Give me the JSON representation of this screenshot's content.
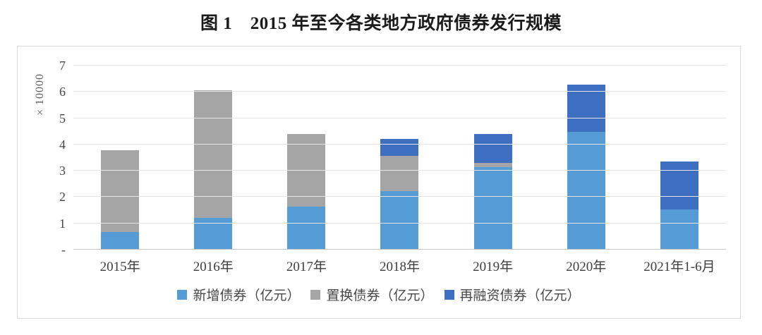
{
  "figure": {
    "title": "图 1　2015 年至今各类地方政府债券发行规模"
  },
  "chart_data": {
    "type": "bar",
    "stacked": true,
    "title": "图 1　2015 年至今各类地方政府债券发行规模",
    "categories": [
      "2015年",
      "2016年",
      "2017年",
      "2018年",
      "2019年",
      "2020年",
      "2021年1-6月"
    ],
    "series": [
      {
        "key": "new-bonds",
        "name": "新增债券（亿元）",
        "color": "#559BD5",
        "values": [
          6500,
          11700,
          16000,
          22000,
          31000,
          44500,
          15000
        ]
      },
      {
        "key": "replacement-bonds",
        "name": "置换债券（亿元）",
        "color": "#A5A5A5",
        "values": [
          31000,
          48700,
          27600,
          13300,
          1800,
          0,
          0
        ]
      },
      {
        "key": "refinancing-bonds",
        "name": "再融资债券（亿元）",
        "color": "#3E6FC0",
        "values": [
          0,
          0,
          0,
          6500,
          11000,
          18000,
          18200
        ]
      }
    ],
    "totals": [
      37500,
      60400,
      43600,
      41800,
      43800,
      62500,
      33200
    ],
    "xlabel": "",
    "ylabel": "×10000",
    "y_axis": {
      "min": 0,
      "max": 70000,
      "tick_interval": 10000,
      "tick_labels_bottom_up": [
        "-",
        "1",
        "2",
        "3",
        "4",
        "5",
        "6",
        "7"
      ],
      "scale_note": "values in 亿元, axis shown in units of 10000"
    },
    "grid": "horizontal",
    "legend_position": "bottom"
  }
}
